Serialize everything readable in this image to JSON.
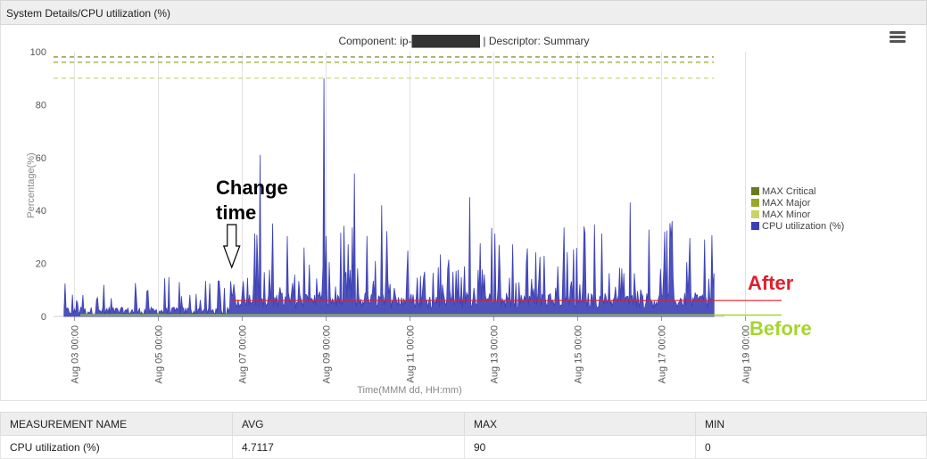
{
  "panel": {
    "title": "System Details/CPU utilization (%)"
  },
  "chart_data": {
    "type": "line",
    "title": "Component: ip-█████████ | Descriptor: Summary",
    "xlabel": "Time(MMM dd, HH:mm)",
    "ylabel": "Percentage(%)",
    "ylim": [
      0,
      100
    ],
    "yticks": [
      0,
      20,
      40,
      60,
      80,
      100
    ],
    "xticks": [
      "Aug 03 00:00",
      "Aug 05 00:00",
      "Aug 07 00:00",
      "Aug 09 00:00",
      "Aug 11 00:00",
      "Aug 13 00:00",
      "Aug 15 00:00",
      "Aug 17 00:00",
      "Aug 19 00:00"
    ],
    "x_start": "Aug 02 12:00",
    "x_end": "Aug 18 12:00",
    "thresholds": [
      {
        "name": "MAX Critical",
        "value": 98,
        "color": "#6b7a1e"
      },
      {
        "name": "MAX Major",
        "value": 96,
        "color": "#9aa62a"
      },
      {
        "name": "MAX Minor",
        "value": 90,
        "color": "#c8d46a"
      }
    ],
    "series": [
      {
        "name": "CPU utilization (%)",
        "color": "#3b3fb5",
        "peak": 90,
        "peak_at": "Aug 08 23:00",
        "avg": 4.7117
      }
    ],
    "legend_position": "right",
    "grid": true
  },
  "annotations": {
    "change_line1": "Change",
    "change_line2": "time",
    "after": "After",
    "before": "Before",
    "after_color": "#e0202a",
    "before_color": "#a6d62a",
    "after_level": 6,
    "before_level": 0.5,
    "change_at": "Aug 06 18:00"
  },
  "table": {
    "headers": [
      "MEASUREMENT NAME",
      "AVG",
      "MAX",
      "MIN"
    ],
    "rows": [
      [
        "CPU utilization (%)",
        "4.7117",
        "90",
        "0"
      ]
    ]
  }
}
